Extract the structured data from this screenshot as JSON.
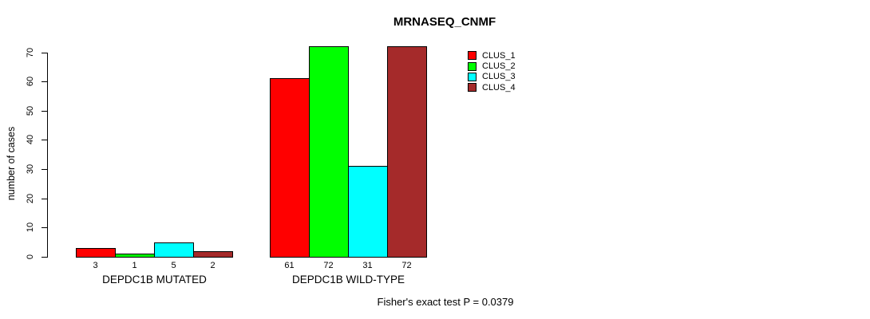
{
  "chart_data": {
    "type": "bar",
    "title": "MRNASEQ_CNMF",
    "ylabel": "number of cases",
    "xlabel": "",
    "ylim": [
      0,
      70
    ],
    "yticks": [
      0,
      10,
      20,
      30,
      40,
      50,
      60,
      70
    ],
    "categories": [
      "DEPDC1B MUTATED",
      "DEPDC1B WILD-TYPE"
    ],
    "series": [
      {
        "name": "CLUS_1",
        "color": "#FF0000",
        "values": [
          3,
          61
        ]
      },
      {
        "name": "CLUS_2",
        "color": "#00FF00",
        "values": [
          1,
          72
        ]
      },
      {
        "name": "CLUS_3",
        "color": "#00FFFF",
        "values": [
          5,
          31
        ]
      },
      {
        "name": "CLUS_4",
        "color": "#A52A2A",
        "values": [
          2,
          72
        ]
      }
    ],
    "bar_value_labels_shown": true,
    "annotation": "Fisher's exact test P = 0.0379",
    "legend_position": "top-right",
    "legend_entries": [
      "CLUS_1",
      "CLUS_2",
      "CLUS_3",
      "CLUS_4"
    ],
    "grid": false,
    "background_color": "#FFFFFF",
    "bar_border_color": "#000000",
    "text_color": "#000000"
  }
}
